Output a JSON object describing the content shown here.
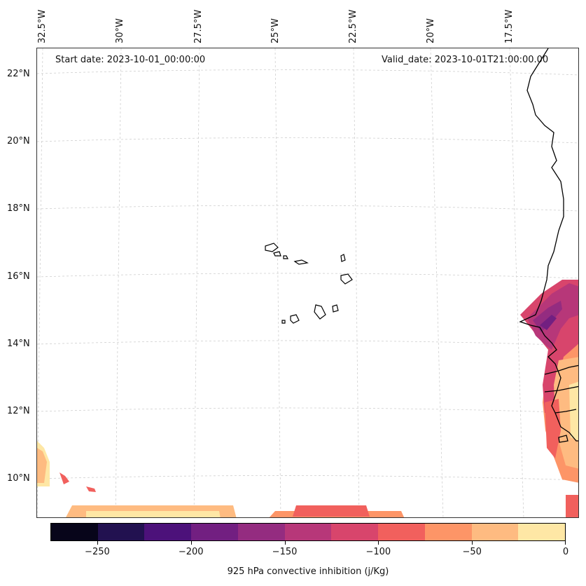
{
  "map": {
    "start_date": "Start date: 2023-10-01_00:00:00",
    "valid_date": "Valid_date: 2023-10-01T21:00:00.00",
    "lon_labels": [
      "32.5°W",
      "30°W",
      "27.5°W",
      "25°W",
      "22.5°W",
      "20°W",
      "17.5°W"
    ],
    "lat_labels": [
      "22°N",
      "20°N",
      "18°N",
      "16°N",
      "14°N",
      "12°N",
      "10°N"
    ]
  },
  "colorbar": {
    "label": "925 hPa convective inhibition (j/Kg)",
    "tick_labels": [
      "−250",
      "−200",
      "−150",
      "−100",
      "−50",
      "0"
    ],
    "levels": [
      -275,
      -250,
      -225,
      -200,
      -175,
      -150,
      -125,
      -100,
      -75,
      -50,
      -25,
      0
    ],
    "colors": [
      "#07051a",
      "#221150",
      "#4c117a",
      "#721f81",
      "#942c80",
      "#b73779",
      "#d8456c",
      "#f1605d",
      "#fd9567",
      "#febb81",
      "#fee7a5"
    ]
  },
  "colors": {
    "coast": "#000000",
    "grid": "#cfcfcf"
  }
}
